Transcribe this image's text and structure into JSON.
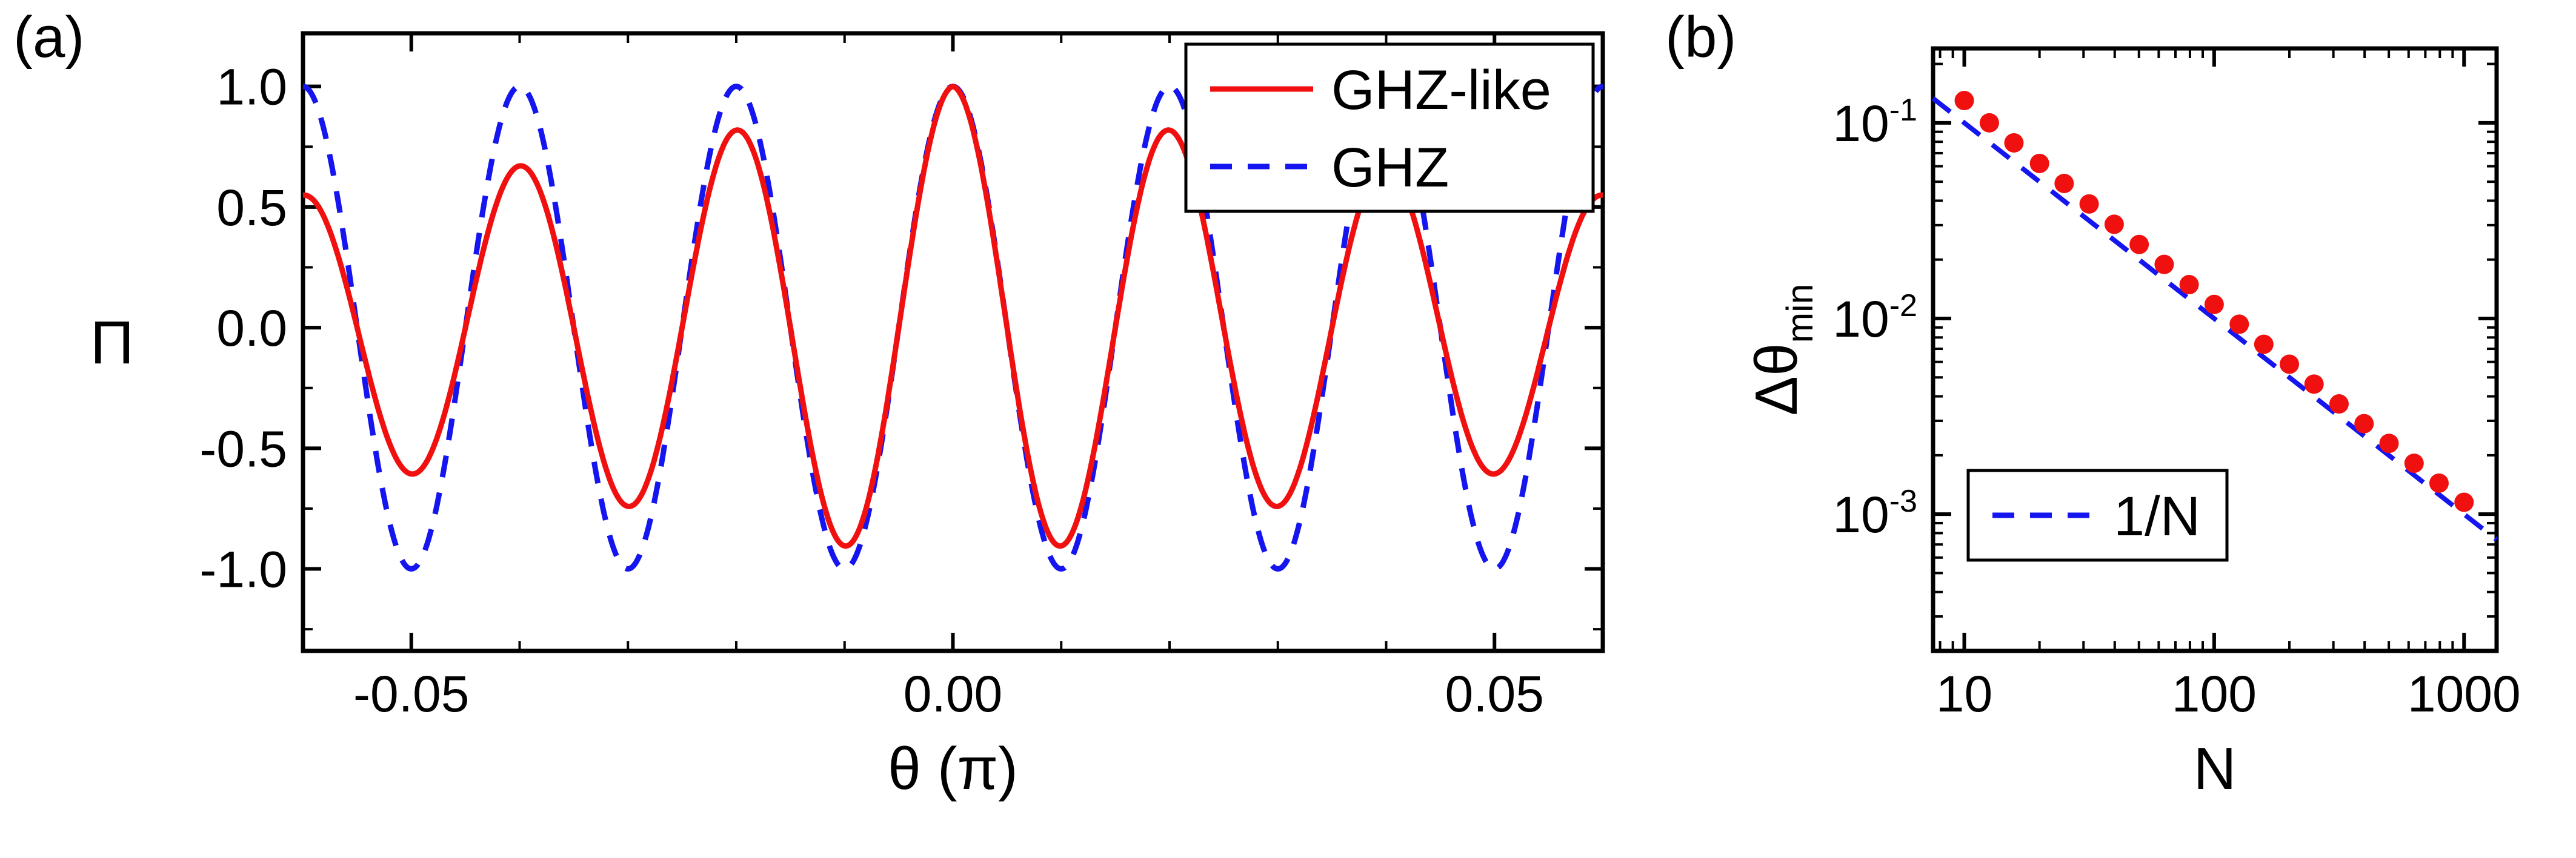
{
  "figure": {
    "panels": [
      {
        "tag": "(a)"
      },
      {
        "tag": "(b)"
      }
    ]
  },
  "colors": {
    "ghz_like_red": "#f01010",
    "ghz_blue": "#1515f0",
    "axis": "#000000",
    "background": "#ffffff"
  },
  "chart_data": [
    {
      "id": "panel-a",
      "type": "line",
      "title": "",
      "xlabel": "θ (π)",
      "ylabel": "Π",
      "ylabel_rotate": false,
      "xlim": [
        -0.06,
        0.06
      ],
      "ylim": [
        -1.34,
        1.22
      ],
      "grid": false,
      "xticks": {
        "values": [
          -0.05,
          0,
          0.05
        ],
        "labels": [
          "-0.05",
          "0.00",
          "0.05"
        ],
        "minor_step": 0.01
      },
      "yticks": {
        "values": [
          -1,
          -0.5,
          0,
          0.5,
          1
        ],
        "labels": [
          "-1.0",
          "-0.5",
          "0.0",
          "0.5",
          "1.0"
        ],
        "minor_step": 0.25
      },
      "legend": {
        "position": "top-right"
      },
      "series": [
        {
          "name": "GHZ-like",
          "color": "#f01010",
          "style": "solid",
          "width": 9,
          "model": {
            "kind": "damped_cosine",
            "amplitude": 1,
            "cycles_per_xunit": 50,
            "envelope_decay": 0.1
          },
          "description": "Pi = cos(100*pi*x) * exp(-|x|/0.1), peaks 1.00 at x=0, 0.82 at x=±0.02, 0.67 at x=±0.04, 0.55 at edges; minima -0.90 at x=±0.01, -0.74 at x=±0.03, -0.61 at x=±0.05"
        },
        {
          "name": "GHZ",
          "color": "#1515f0",
          "style": "dashed",
          "width": 9,
          "model": {
            "kind": "cosine",
            "amplitude": 1,
            "cycles_per_xunit": 50
          },
          "description": "Pi = cos(100*pi*x), full-contrast oscillation between +1 and -1 with period 0.02 in units of pi"
        }
      ]
    },
    {
      "id": "panel-b",
      "type": "scatter+line",
      "title": "",
      "xlabel": "N",
      "ylabel": "Δθ_min",
      "ylabel_rotate": true,
      "xscale": "log",
      "yscale": "log",
      "xlim": [
        7.5,
        1350
      ],
      "ylim": [
        0.0002,
        0.24
      ],
      "grid": false,
      "xticks": {
        "values": [
          10,
          100,
          1000
        ],
        "labels": [
          "10",
          "100",
          "1000"
        ]
      },
      "yticks": {
        "values": [
          0.1,
          0.01,
          0.001
        ],
        "labels": [
          "10^-1",
          "10^-2",
          "10^-3"
        ]
      },
      "legend": {
        "position": "bottom-left"
      },
      "series": [
        {
          "name": "Δθ_min data",
          "type": "scatter",
          "color": "#f01010",
          "marker": "circle",
          "radius": 16,
          "show_in_legend": false,
          "x": [
            10,
            12.6,
            15.8,
            20,
            25.1,
            31.6,
            39.8,
            50.1,
            63.1,
            79.4,
            100,
            126,
            158,
            200,
            251,
            316,
            398,
            501,
            631,
            794,
            1000
          ],
          "y": [
            0.13,
            0.1,
            0.079,
            0.062,
            0.049,
            0.0385,
            0.0303,
            0.0239,
            0.0189,
            0.0149,
            0.0118,
            0.00935,
            0.00738,
            0.00584,
            0.00462,
            0.00366,
            0.0029,
            0.0023,
            0.00182,
            0.00144,
            0.00115
          ]
        },
        {
          "name": "1/N",
          "type": "line",
          "color": "#1515f0",
          "style": "dashed",
          "width": 8,
          "show_in_legend": true,
          "x": [
            7.5,
            1350
          ],
          "y": [
            0.13333,
            0.00074074
          ],
          "description": "reference scaling line y = 1/N"
        }
      ]
    }
  ]
}
